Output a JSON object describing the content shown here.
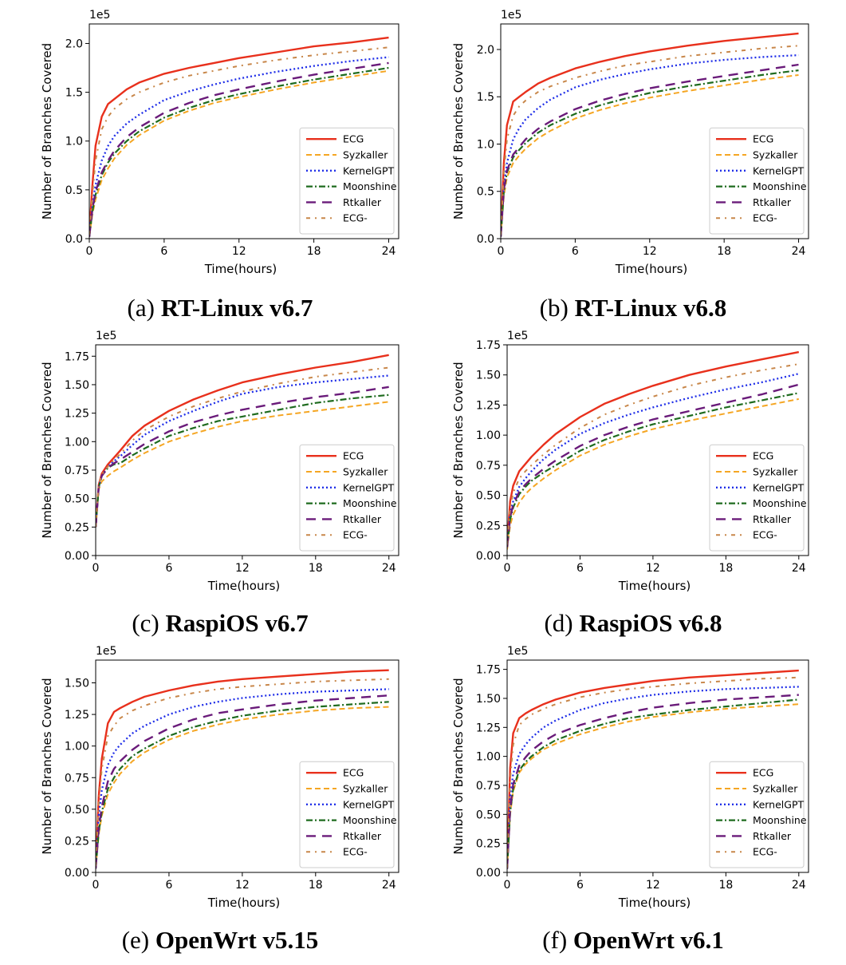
{
  "figure": {
    "legend_entries": [
      "ECG",
      "Syzkaller",
      "KernelGPT",
      "Moonshine",
      "Rtkaller",
      "ECG-"
    ],
    "series_colors": {
      "ECG": "#e8301c",
      "Syzkaller": "#f5a623",
      "KernelGPT": "#1f2ee8",
      "Moonshine": "#1e6b1e",
      "Rtkaller": "#6a1b7a",
      "ECG-": "#c8874a"
    },
    "series_styles": {
      "ECG": "solid",
      "Syzkaller": "dashed",
      "KernelGPT": "dotted",
      "Moonshine": "dash-dot",
      "Rtkaller": "long-dash",
      "ECG-": "dash-dot-sparse"
    }
  },
  "chart_data": [
    {
      "type": "line",
      "panel_label": "(a)",
      "caption": "RT-Linux v6.7",
      "xlabel": "Time(hours)",
      "ylabel": "Number of Branches Covered",
      "exponent_label": "1e5",
      "xlim": [
        0,
        24.8
      ],
      "ylim": [
        0,
        2.2
      ],
      "xticks": [
        0,
        6,
        12,
        18,
        24
      ],
      "yticks": [
        0.0,
        0.5,
        1.0,
        1.5,
        2.0
      ],
      "ytick_labels": [
        "0.0",
        "0.5",
        "1.0",
        "1.5",
        "2.0"
      ],
      "legend_position": "lower right",
      "x": [
        0,
        0.25,
        0.5,
        1,
        1.5,
        2,
        3,
        4,
        6,
        8,
        10,
        12,
        15,
        18,
        21,
        24
      ],
      "series": [
        {
          "name": "ECG",
          "values": [
            0.05,
            0.55,
            0.95,
            1.25,
            1.38,
            1.43,
            1.53,
            1.6,
            1.69,
            1.75,
            1.8,
            1.85,
            1.91,
            1.97,
            2.01,
            2.06
          ]
        },
        {
          "name": "Syzkaller",
          "values": [
            0.02,
            0.25,
            0.4,
            0.6,
            0.72,
            0.82,
            0.96,
            1.06,
            1.21,
            1.31,
            1.39,
            1.45,
            1.53,
            1.6,
            1.66,
            1.72
          ]
        },
        {
          "name": "KernelGPT",
          "values": [
            0.03,
            0.35,
            0.55,
            0.8,
            0.95,
            1.05,
            1.18,
            1.27,
            1.42,
            1.51,
            1.58,
            1.64,
            1.71,
            1.77,
            1.82,
            1.86
          ]
        },
        {
          "name": "Moonshine",
          "values": [
            0.02,
            0.28,
            0.45,
            0.65,
            0.78,
            0.87,
            1.0,
            1.1,
            1.24,
            1.34,
            1.42,
            1.48,
            1.56,
            1.63,
            1.69,
            1.75
          ]
        },
        {
          "name": "Rtkaller",
          "values": [
            0.02,
            0.3,
            0.48,
            0.68,
            0.8,
            0.9,
            1.04,
            1.14,
            1.29,
            1.39,
            1.47,
            1.53,
            1.61,
            1.68,
            1.74,
            1.8
          ]
        },
        {
          "name": "ECG-",
          "values": [
            0.04,
            0.45,
            0.8,
            1.12,
            1.25,
            1.33,
            1.43,
            1.5,
            1.6,
            1.67,
            1.72,
            1.77,
            1.83,
            1.88,
            1.92,
            1.96
          ]
        }
      ]
    },
    {
      "type": "line",
      "panel_label": "(b)",
      "caption": "RT-Linux v6.8",
      "xlabel": "Time(hours)",
      "ylabel": "Number of Branches Covered",
      "exponent_label": "1e5",
      "xlim": [
        0,
        24.8
      ],
      "ylim": [
        0,
        2.27
      ],
      "xticks": [
        0,
        6,
        12,
        18,
        24
      ],
      "yticks": [
        0.0,
        0.5,
        1.0,
        1.5,
        2.0
      ],
      "ytick_labels": [
        "0.0",
        "0.5",
        "1.0",
        "1.5",
        "2.0"
      ],
      "legend_position": "lower right",
      "x": [
        0,
        0.25,
        0.5,
        1,
        1.5,
        2,
        3,
        4,
        6,
        8,
        10,
        12,
        15,
        18,
        21,
        24
      ],
      "series": [
        {
          "name": "ECG",
          "values": [
            0.05,
            0.8,
            1.2,
            1.45,
            1.5,
            1.55,
            1.64,
            1.7,
            1.8,
            1.87,
            1.93,
            1.98,
            2.04,
            2.09,
            2.13,
            2.17
          ]
        },
        {
          "name": "Syzkaller",
          "values": [
            0.02,
            0.45,
            0.65,
            0.8,
            0.88,
            0.95,
            1.06,
            1.14,
            1.27,
            1.36,
            1.43,
            1.49,
            1.56,
            1.62,
            1.68,
            1.73
          ]
        },
        {
          "name": "KernelGPT",
          "values": [
            0.03,
            0.55,
            0.8,
            1.05,
            1.17,
            1.26,
            1.38,
            1.47,
            1.6,
            1.68,
            1.74,
            1.79,
            1.85,
            1.89,
            1.92,
            1.94
          ]
        },
        {
          "name": "Moonshine",
          "values": [
            0.02,
            0.5,
            0.7,
            0.86,
            0.94,
            1.01,
            1.12,
            1.2,
            1.32,
            1.41,
            1.48,
            1.54,
            1.61,
            1.67,
            1.73,
            1.78
          ]
        },
        {
          "name": "Rtkaller",
          "values": [
            0.02,
            0.52,
            0.72,
            0.89,
            0.97,
            1.05,
            1.16,
            1.24,
            1.37,
            1.46,
            1.53,
            1.59,
            1.66,
            1.72,
            1.78,
            1.84
          ]
        },
        {
          "name": "ECG-",
          "values": [
            0.04,
            0.7,
            1.05,
            1.3,
            1.4,
            1.46,
            1.55,
            1.61,
            1.7,
            1.77,
            1.83,
            1.87,
            1.93,
            1.97,
            2.01,
            2.04
          ]
        }
      ]
    },
    {
      "type": "line",
      "panel_label": "(c)",
      "caption": "RaspiOS v6.7",
      "xlabel": "Time(hours)",
      "ylabel": "Number of Branches Covered",
      "exponent_label": "1e5",
      "xlim": [
        0,
        24.8
      ],
      "ylim": [
        0,
        1.85
      ],
      "xticks": [
        0,
        6,
        12,
        18,
        24
      ],
      "yticks": [
        0.0,
        0.25,
        0.5,
        0.75,
        1.0,
        1.25,
        1.5,
        1.75
      ],
      "ytick_labels": [
        "0.00",
        "0.25",
        "0.50",
        "0.75",
        "1.00",
        "1.25",
        "1.50",
        "1.75"
      ],
      "legend_position": "lower right",
      "x": [
        0,
        0.25,
        0.5,
        1,
        1.5,
        2,
        3,
        4,
        6,
        8,
        10,
        12,
        15,
        18,
        21,
        24
      ],
      "series": [
        {
          "name": "ECG",
          "values": [
            0.25,
            0.62,
            0.72,
            0.8,
            0.86,
            0.92,
            1.05,
            1.14,
            1.27,
            1.37,
            1.45,
            1.52,
            1.59,
            1.65,
            1.7,
            1.76
          ]
        },
        {
          "name": "Syzkaller",
          "values": [
            0.25,
            0.58,
            0.65,
            0.7,
            0.74,
            0.77,
            0.84,
            0.9,
            1.0,
            1.07,
            1.13,
            1.18,
            1.23,
            1.27,
            1.31,
            1.35
          ]
        },
        {
          "name": "KernelGPT",
          "values": [
            0.25,
            0.6,
            0.7,
            0.78,
            0.83,
            0.87,
            0.97,
            1.06,
            1.18,
            1.27,
            1.35,
            1.42,
            1.48,
            1.52,
            1.55,
            1.58
          ]
        },
        {
          "name": "Moonshine",
          "values": [
            0.25,
            0.6,
            0.7,
            0.77,
            0.8,
            0.81,
            0.88,
            0.94,
            1.05,
            1.12,
            1.18,
            1.22,
            1.28,
            1.34,
            1.38,
            1.41
          ]
        },
        {
          "name": "Rtkaller",
          "values": [
            0.25,
            0.6,
            0.7,
            0.77,
            0.81,
            0.84,
            0.91,
            0.98,
            1.09,
            1.17,
            1.23,
            1.28,
            1.34,
            1.39,
            1.43,
            1.48
          ]
        },
        {
          "name": "ECG-",
          "values": [
            0.25,
            0.62,
            0.71,
            0.78,
            0.84,
            0.89,
            1.01,
            1.1,
            1.22,
            1.31,
            1.38,
            1.44,
            1.51,
            1.57,
            1.61,
            1.65
          ]
        }
      ]
    },
    {
      "type": "line",
      "panel_label": "(d)",
      "caption": "RaspiOS v6.8",
      "xlabel": "Time(hours)",
      "ylabel": "Number of Branches Covered",
      "exponent_label": "1e5",
      "xlim": [
        0,
        24.8
      ],
      "ylim": [
        0,
        1.75
      ],
      "xticks": [
        0,
        6,
        12,
        18,
        24
      ],
      "yticks": [
        0.0,
        0.25,
        0.5,
        0.75,
        1.0,
        1.25,
        1.5,
        1.75
      ],
      "ytick_labels": [
        "0.00",
        "0.25",
        "0.50",
        "0.75",
        "1.00",
        "1.25",
        "1.50",
        "1.75"
      ],
      "legend_position": "lower right",
      "x": [
        0,
        0.25,
        0.5,
        1,
        1.5,
        2,
        3,
        4,
        6,
        8,
        10,
        12,
        15,
        18,
        21,
        24
      ],
      "series": [
        {
          "name": "ECG",
          "values": [
            0.1,
            0.45,
            0.58,
            0.7,
            0.76,
            0.82,
            0.92,
            1.01,
            1.15,
            1.26,
            1.34,
            1.41,
            1.5,
            1.57,
            1.63,
            1.69
          ]
        },
        {
          "name": "Syzkaller",
          "values": [
            0.05,
            0.25,
            0.34,
            0.44,
            0.51,
            0.56,
            0.64,
            0.71,
            0.83,
            0.92,
            0.99,
            1.05,
            1.12,
            1.18,
            1.24,
            1.3
          ]
        },
        {
          "name": "KernelGPT",
          "values": [
            0.08,
            0.35,
            0.45,
            0.57,
            0.64,
            0.7,
            0.8,
            0.88,
            1.01,
            1.1,
            1.17,
            1.23,
            1.31,
            1.38,
            1.44,
            1.51
          ]
        },
        {
          "name": "Moonshine",
          "values": [
            0.07,
            0.3,
            0.4,
            0.51,
            0.57,
            0.62,
            0.69,
            0.75,
            0.87,
            0.96,
            1.03,
            1.09,
            1.16,
            1.23,
            1.29,
            1.35
          ]
        },
        {
          "name": "Rtkaller",
          "values": [
            0.07,
            0.32,
            0.42,
            0.53,
            0.59,
            0.64,
            0.72,
            0.79,
            0.91,
            1.0,
            1.07,
            1.13,
            1.2,
            1.27,
            1.34,
            1.42
          ]
        },
        {
          "name": "ECG-",
          "values": [
            0.09,
            0.4,
            0.52,
            0.64,
            0.7,
            0.75,
            0.84,
            0.92,
            1.06,
            1.17,
            1.25,
            1.32,
            1.41,
            1.48,
            1.54,
            1.59
          ]
        }
      ]
    },
    {
      "type": "line",
      "panel_label": "(e)",
      "caption": "OpenWrt v5.15",
      "xlabel": "Time(hours)",
      "ylabel": "Number of Branches Covered",
      "exponent_label": "1e5",
      "xlim": [
        0,
        24.8
      ],
      "ylim": [
        0,
        1.68
      ],
      "xticks": [
        0,
        6,
        12,
        18,
        24
      ],
      "yticks": [
        0.0,
        0.25,
        0.5,
        0.75,
        1.0,
        1.25,
        1.5
      ],
      "ytick_labels": [
        "0.00",
        "0.25",
        "0.50",
        "0.75",
        "1.00",
        "1.25",
        "1.50"
      ],
      "legend_position": "lower right",
      "x": [
        0,
        0.25,
        0.5,
        1,
        1.5,
        2,
        3,
        4,
        6,
        8,
        10,
        12,
        15,
        18,
        21,
        24
      ],
      "series": [
        {
          "name": "ECG",
          "values": [
            0.05,
            0.6,
            0.9,
            1.18,
            1.27,
            1.3,
            1.35,
            1.39,
            1.44,
            1.48,
            1.51,
            1.53,
            1.55,
            1.57,
            1.59,
            1.6
          ]
        },
        {
          "name": "Syzkaller",
          "values": [
            0.03,
            0.3,
            0.45,
            0.62,
            0.71,
            0.78,
            0.88,
            0.95,
            1.05,
            1.12,
            1.17,
            1.21,
            1.25,
            1.28,
            1.3,
            1.31
          ]
        },
        {
          "name": "KernelGPT",
          "values": [
            0.04,
            0.45,
            0.65,
            0.85,
            0.95,
            1.01,
            1.1,
            1.16,
            1.25,
            1.31,
            1.35,
            1.38,
            1.41,
            1.43,
            1.44,
            1.45
          ]
        },
        {
          "name": "Moonshine",
          "values": [
            0.03,
            0.32,
            0.48,
            0.66,
            0.75,
            0.82,
            0.92,
            0.98,
            1.08,
            1.15,
            1.2,
            1.24,
            1.28,
            1.31,
            1.33,
            1.35
          ]
        },
        {
          "name": "Rtkaller",
          "values": [
            0.03,
            0.35,
            0.52,
            0.72,
            0.82,
            0.88,
            0.97,
            1.04,
            1.14,
            1.21,
            1.26,
            1.29,
            1.33,
            1.36,
            1.38,
            1.4
          ]
        },
        {
          "name": "ECG-",
          "values": [
            0.05,
            0.55,
            0.82,
            1.08,
            1.16,
            1.22,
            1.28,
            1.32,
            1.38,
            1.42,
            1.45,
            1.47,
            1.49,
            1.51,
            1.52,
            1.53
          ]
        }
      ]
    },
    {
      "type": "line",
      "panel_label": "(f)",
      "caption": "OpenWrt v6.1",
      "xlabel": "Time(hours)",
      "ylabel": "Number of Branches Covered",
      "exponent_label": "1e5",
      "xlim": [
        0,
        24.8
      ],
      "ylim": [
        0,
        1.83
      ],
      "xticks": [
        0,
        6,
        12,
        18,
        24
      ],
      "yticks": [
        0.0,
        0.25,
        0.5,
        0.75,
        1.0,
        1.25,
        1.5,
        1.75
      ],
      "ytick_labels": [
        "0.00",
        "0.25",
        "0.50",
        "0.75",
        "1.00",
        "1.25",
        "1.50",
        "1.75"
      ],
      "legend_position": "lower right",
      "x": [
        0,
        0.25,
        0.5,
        1,
        1.5,
        2,
        3,
        4,
        6,
        8,
        10,
        12,
        15,
        18,
        21,
        24
      ],
      "series": [
        {
          "name": "ECG",
          "values": [
            0.05,
            0.9,
            1.2,
            1.33,
            1.37,
            1.4,
            1.45,
            1.49,
            1.55,
            1.59,
            1.62,
            1.65,
            1.68,
            1.7,
            1.72,
            1.74
          ]
        },
        {
          "name": "Syzkaller",
          "values": [
            0.03,
            0.5,
            0.7,
            0.86,
            0.93,
            0.98,
            1.06,
            1.11,
            1.19,
            1.25,
            1.3,
            1.34,
            1.38,
            1.41,
            1.43,
            1.45
          ]
        },
        {
          "name": "KernelGPT",
          "values": [
            0.04,
            0.65,
            0.85,
            1.02,
            1.1,
            1.16,
            1.25,
            1.31,
            1.4,
            1.46,
            1.5,
            1.53,
            1.56,
            1.58,
            1.59,
            1.6
          ]
        },
        {
          "name": "Moonshine",
          "values": [
            0.03,
            0.52,
            0.72,
            0.88,
            0.95,
            1.0,
            1.08,
            1.14,
            1.22,
            1.28,
            1.33,
            1.36,
            1.4,
            1.43,
            1.46,
            1.49
          ]
        },
        {
          "name": "Rtkaller",
          "values": [
            0.03,
            0.55,
            0.76,
            0.92,
            0.99,
            1.05,
            1.13,
            1.19,
            1.27,
            1.33,
            1.38,
            1.42,
            1.46,
            1.49,
            1.51,
            1.53
          ]
        },
        {
          "name": "ECG-",
          "values": [
            0.04,
            0.8,
            1.1,
            1.27,
            1.32,
            1.36,
            1.41,
            1.45,
            1.51,
            1.55,
            1.58,
            1.6,
            1.63,
            1.65,
            1.67,
            1.68
          ]
        }
      ]
    }
  ]
}
